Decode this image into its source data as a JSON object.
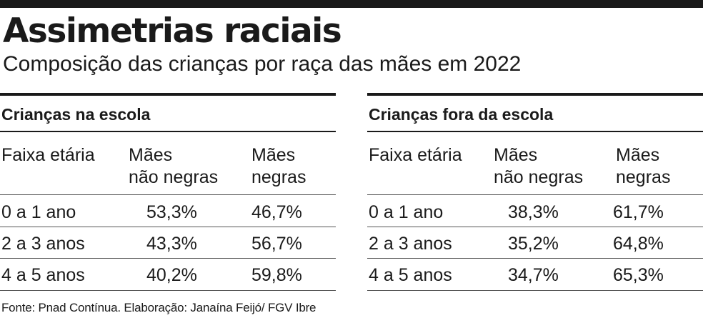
{
  "header": {
    "title": "Assimetrias raciais",
    "subtitle": "Composição das crianças por raça das mães em 2022"
  },
  "chart_data": [
    {
      "type": "table",
      "title": "Crianças na escola",
      "columns": [
        "Faixa etária",
        "Mães\nnão negras",
        "Mães\nnegras"
      ],
      "column_lines": [
        [
          "Faixa etária"
        ],
        [
          "Mães",
          "não negras"
        ],
        [
          "Mães",
          "negras"
        ]
      ],
      "rows": [
        {
          "faixa": "0 a 1 ano",
          "nao_negras": "53,3%",
          "negras": "46,7%"
        },
        {
          "faixa": "2 a 3 anos",
          "nao_negras": "43,3%",
          "negras": "56,7%"
        },
        {
          "faixa": "4 a 5 anos",
          "nao_negras": "40,2%",
          "negras": "59,8%"
        }
      ]
    },
    {
      "type": "table",
      "title": "Crianças fora da escola",
      "columns": [
        "Faixa etária",
        "Mães\nnão negras",
        "Mães\nnegras"
      ],
      "column_lines": [
        [
          "Faixa etária"
        ],
        [
          "Mães",
          "não negras"
        ],
        [
          "Mães",
          "negras"
        ]
      ],
      "rows": [
        {
          "faixa": "0 a 1 ano",
          "nao_negras": "38,3%",
          "negras": "61,7%"
        },
        {
          "faixa": "2 a 3 anos",
          "nao_negras": "35,2%",
          "negras": "64,8%"
        },
        {
          "faixa": "4 a 5 anos",
          "nao_negras": "34,7%",
          "negras": "65,3%"
        }
      ]
    }
  ],
  "footer": {
    "source": "Fonte: Pnad Contínua. Elaboração: Janaína Feijó/ FGV Ibre"
  }
}
